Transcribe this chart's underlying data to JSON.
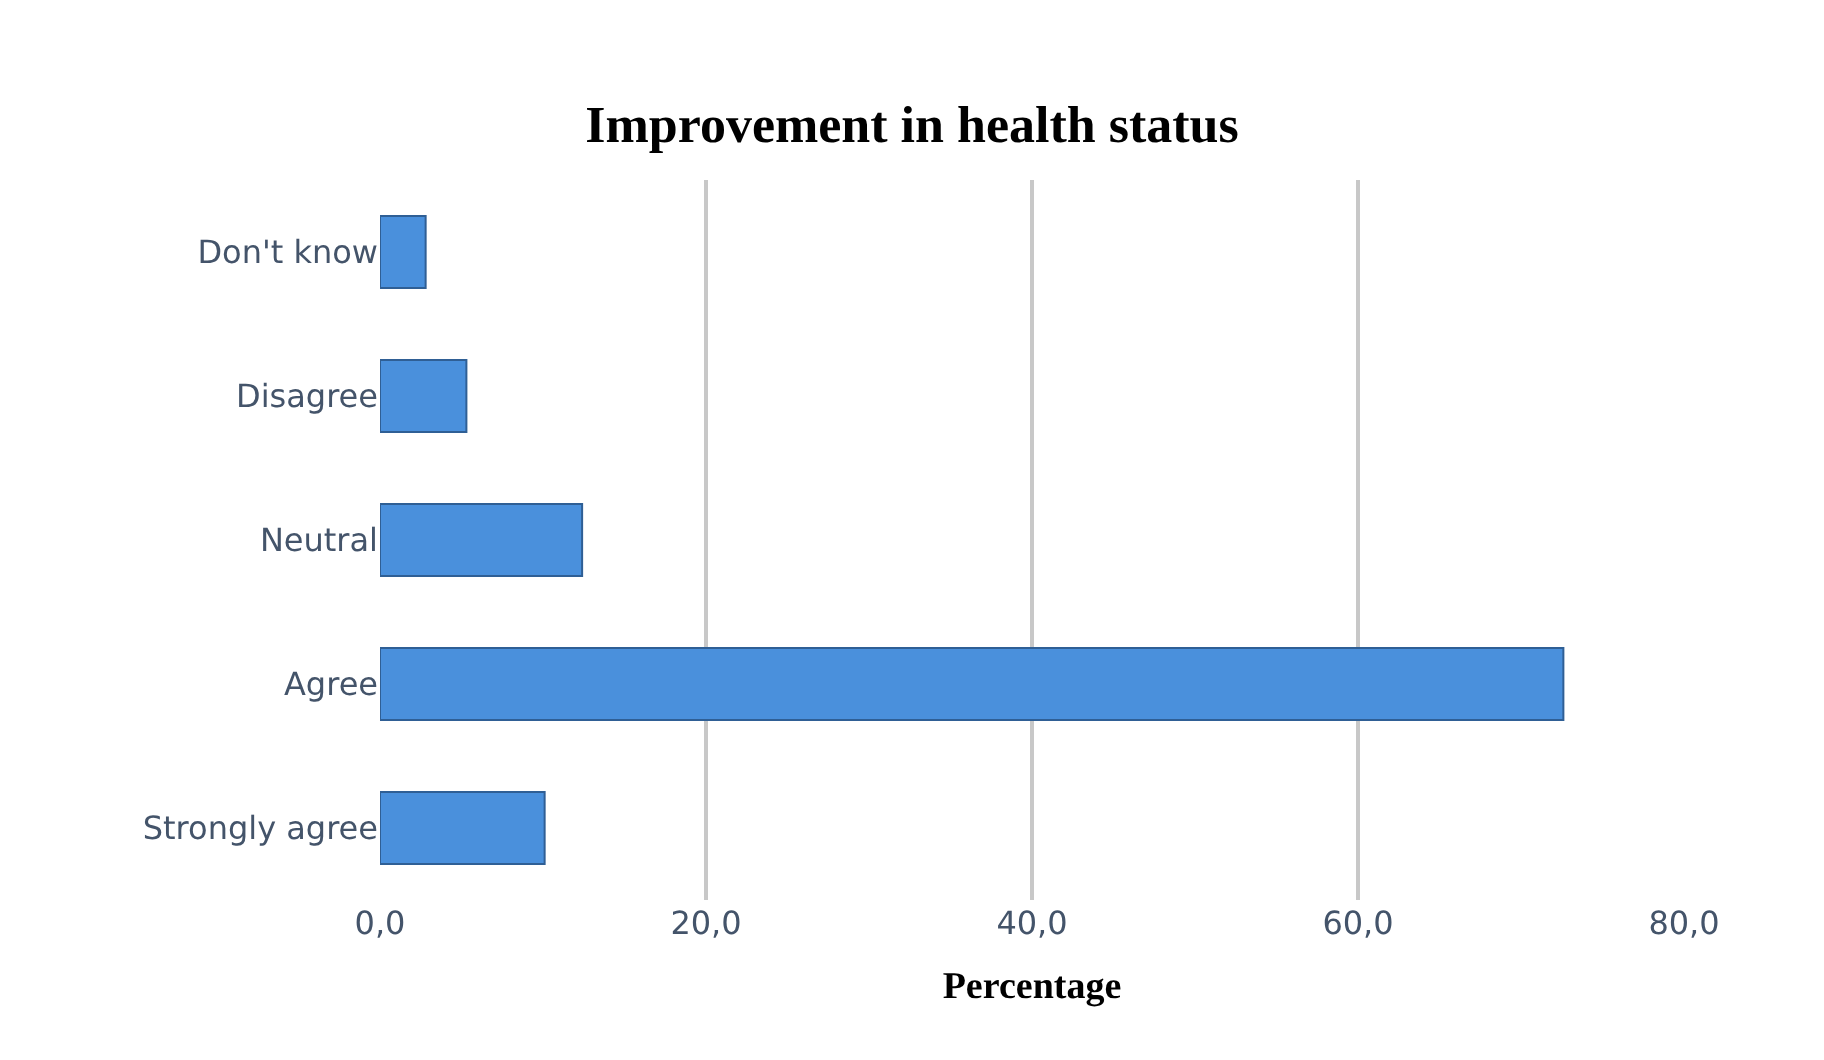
{
  "chart_data": {
    "type": "bar",
    "orientation": "horizontal",
    "title": "Improvement in health status",
    "xlabel": "Percentage",
    "categories": [
      "Don't know",
      "Disagree",
      "Neutral",
      "Agree",
      "Strongly agree"
    ],
    "values": [
      2.8,
      5.3,
      12.4,
      72.6,
      10.1
    ],
    "color": "#4a90dc",
    "xlim": [
      0,
      80
    ],
    "xticks": [
      {
        "value": 0,
        "label": "0,0"
      },
      {
        "value": 20,
        "label": "20,0"
      },
      {
        "value": 40,
        "label": "40,0"
      },
      {
        "value": 60,
        "label": "60,0"
      },
      {
        "value": 80,
        "label": "80,0"
      }
    ],
    "grid": "x",
    "legend": false
  }
}
